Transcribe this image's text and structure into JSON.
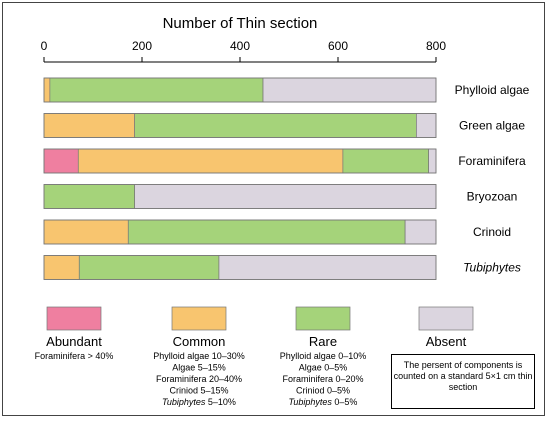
{
  "chart_data": {
    "type": "bar",
    "orientation": "horizontal",
    "stacked": true,
    "title": "Number of Thin section",
    "xlim": [
      0,
      800
    ],
    "xticks": [
      0,
      200,
      400,
      600,
      800
    ],
    "categories": [
      "Phylloid algae",
      "Green algae",
      "Foraminifera",
      "Bryozoan",
      "Crinoid",
      "Tubiphytes"
    ],
    "italic_categories": [
      "Tubiphytes"
    ],
    "series": [
      {
        "name": "Abundant",
        "color": "#ef7fa0",
        "values": [
          0,
          0,
          70,
          0,
          0,
          0
        ]
      },
      {
        "name": "Common",
        "color": "#f8c56f",
        "values": [
          12,
          185,
          540,
          0,
          172,
          72
        ]
      },
      {
        "name": "Rare",
        "color": "#a5d37a",
        "values": [
          435,
          575,
          175,
          185,
          565,
          285
        ]
      },
      {
        "name": "Absent",
        "color": "#dbd5df",
        "values": [
          353,
          40,
          15,
          615,
          63,
          443
        ]
      }
    ]
  },
  "legend": [
    {
      "name": "Abundant",
      "color": "#ef7fa0",
      "lines": [
        {
          "text": "Foraminifera > 40%",
          "italic": false
        }
      ]
    },
    {
      "name": "Common",
      "color": "#f8c56f",
      "lines": [
        {
          "text": "Phylloid algae 10–30%",
          "italic": false
        },
        {
          "text": "Algae 5–15%",
          "italic": false
        },
        {
          "text": "Foraminifera 20–40%",
          "italic": false
        },
        {
          "text": "Criniod 5–15%",
          "italic": false
        },
        {
          "text": "Tubiphytes",
          "italic": true,
          "rest": " 5–10%"
        }
      ]
    },
    {
      "name": "Rare",
      "color": "#a5d37a",
      "lines": [
        {
          "text": "Phylloid algae 0–10%",
          "italic": false
        },
        {
          "text": "Algae 0–5%",
          "italic": false
        },
        {
          "text": "Foraminifera 0–20%",
          "italic": false
        },
        {
          "text": "Criniod 0–5%",
          "italic": false
        },
        {
          "text": "Tubiphytes",
          "italic": true,
          "rest": " 0–5%"
        }
      ]
    },
    {
      "name": "Absent",
      "color": "#dbd5df",
      "lines": []
    }
  ],
  "note": "The persent of  components is counted on a standard 5×1 cm thin section"
}
